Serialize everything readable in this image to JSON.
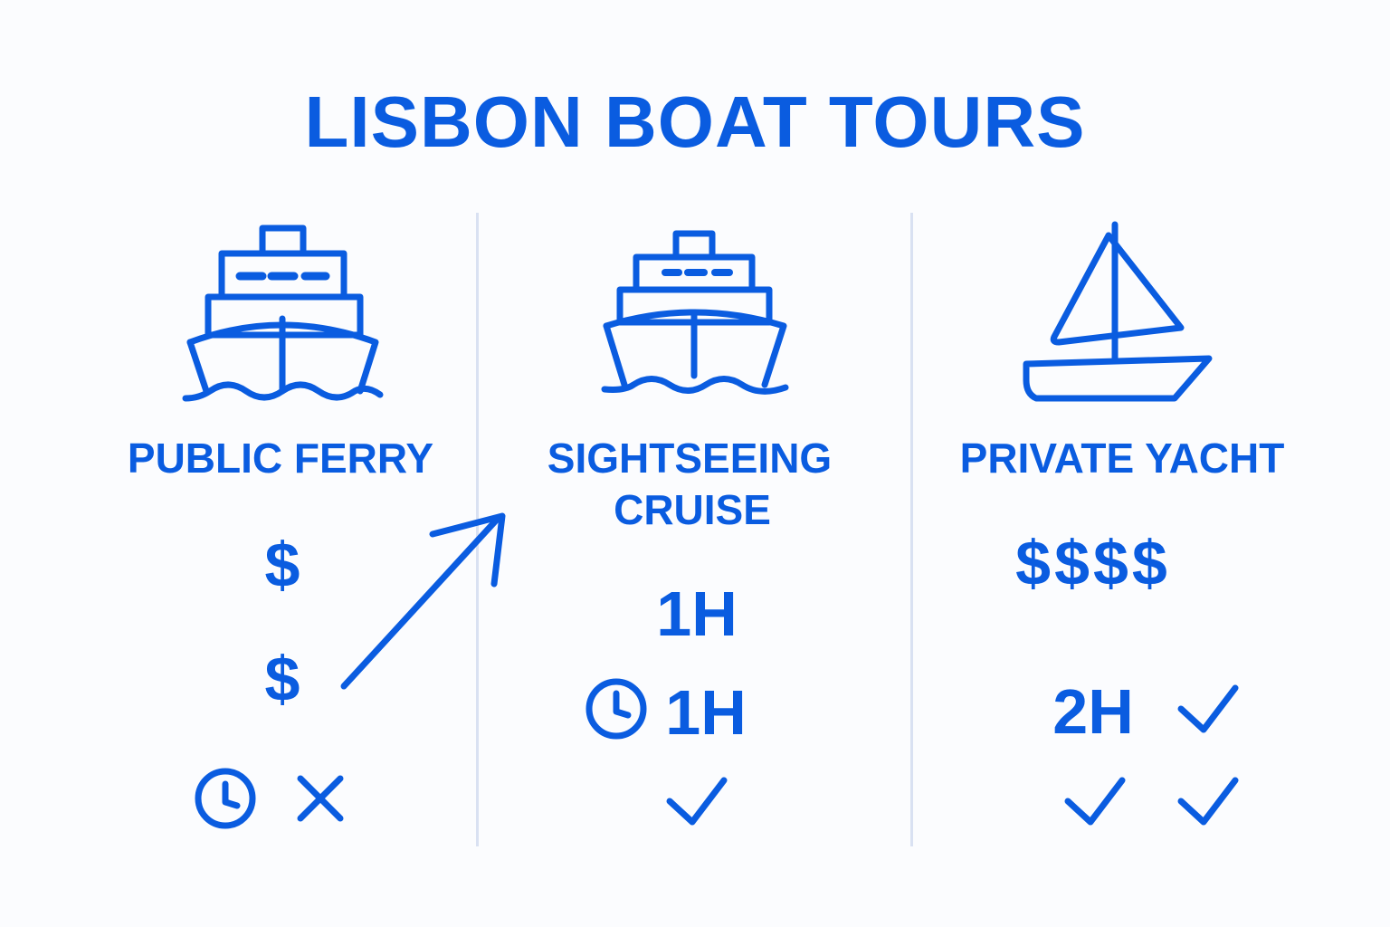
{
  "title": "LISBON BOAT TOURS",
  "accent_color": "#0a5ce0",
  "columns": [
    {
      "icon": "ferry-icon",
      "label": "PUBLIC FERRY",
      "price_1": "$",
      "price_2": "$",
      "duration_icon": "clock-icon",
      "feature_icon": "x-icon"
    },
    {
      "icon": "cruise-ship-icon",
      "label_line1": "SIGHTSEEING",
      "label_line2": "CRUISE",
      "duration_1": "1H",
      "duration_2": "1H",
      "duration_icon": "clock-icon",
      "feature_icon": "check-icon"
    },
    {
      "icon": "sailboat-icon",
      "label": "PRIVATE YACHT",
      "price": "$$$$",
      "duration": "2H",
      "feature_icons": [
        "check-icon",
        "check-icon",
        "check-icon"
      ]
    }
  ],
  "connector_icon": "arrow-up-right-icon"
}
